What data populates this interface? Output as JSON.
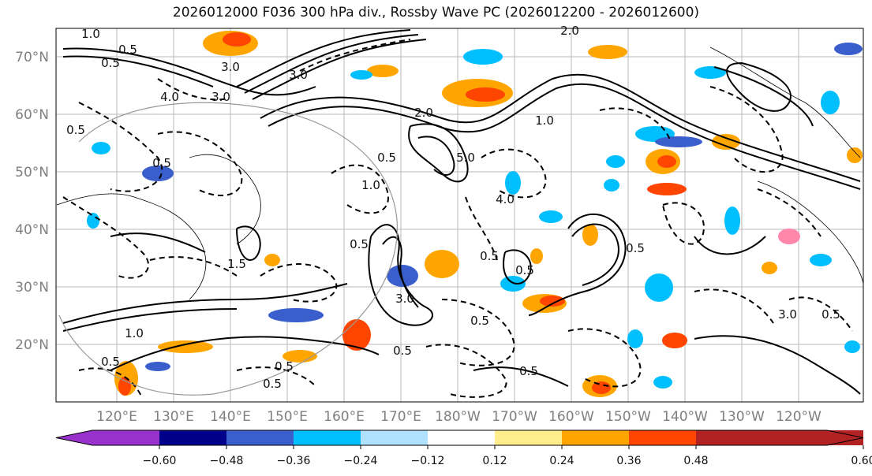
{
  "title": "2026012000 F036 300 hPa div., Rossby Wave PC (2026012200 - 2026012600)",
  "map": {
    "lat_labels": [
      "70°N",
      "60°N",
      "50°N",
      "40°N",
      "30°N",
      "20°N"
    ],
    "lon_labels": [
      "120°E",
      "130°E",
      "140°E",
      "150°E",
      "160°E",
      "170°E",
      "180°W",
      "170°W",
      "160°W",
      "150°W",
      "140°W",
      "130°W",
      "120°W"
    ],
    "contour_labels": [
      "1.0",
      "0.5",
      "0.5",
      "3.0",
      "3.0",
      "4.0",
      "3.0",
      "2.0",
      "2.0",
      "1.0",
      "0.5",
      "0.5",
      "0.5",
      "1.0",
      "1.5",
      "0.5",
      "0.5",
      "0.5",
      "0.5",
      "0.5",
      "4.0",
      "3.0",
      "0.5",
      "0.5",
      "0.5",
      "0.5",
      "3.0",
      "5.0",
      "0.5",
      "1.0",
      "0.5"
    ]
  },
  "colorbar": {
    "ticks": [
      "−0.60",
      "−0.48",
      "−0.36",
      "−0.24",
      "−0.12",
      "0.12",
      "0.24",
      "0.36",
      "0.48",
      "0.60"
    ],
    "colors": [
      "#9932cc",
      "#00008b",
      "#3a5fcd",
      "#00bfff",
      "#b0e2ff",
      "#ffffff",
      "#ffec8b",
      "#ffa500",
      "#ff4500",
      "#b22222",
      "#ff88aa"
    ]
  }
}
